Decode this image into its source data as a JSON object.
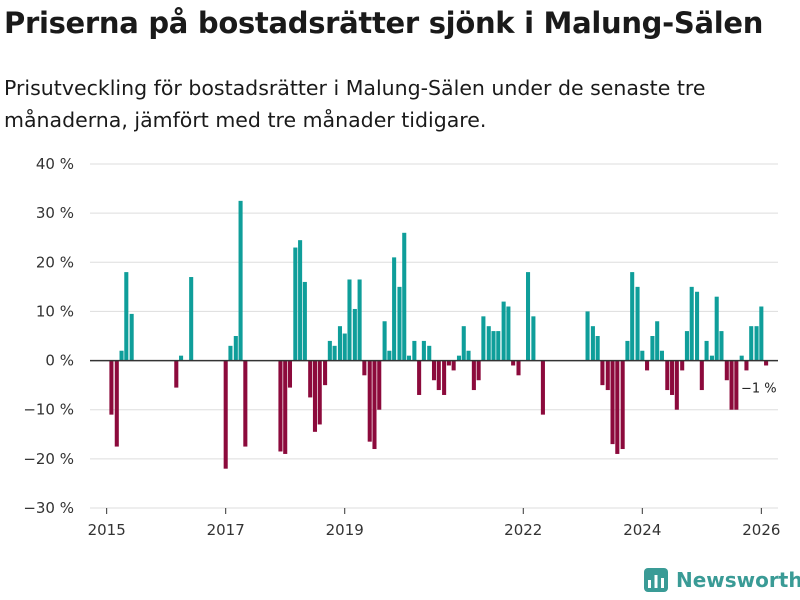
{
  "title": "Priserna på bostadsrätter sjönk i Malung-Sälen",
  "subtitle": "Prisutveckling för bostadsrätter i Malung-Sälen under de senaste tre månaderna, jämfört med tre månader tidigare.",
  "brand": {
    "name": "Newsworthy",
    "icon": "newsworthy-logo-icon"
  },
  "colors": {
    "positive": "#0f9e9a",
    "negative": "#8c0a3c",
    "grid": "#dddddd",
    "axis": "#333333",
    "brand": "#3a9b96"
  },
  "chart_data": {
    "type": "bar",
    "title": "Priserna på bostadsrätter sjönk i Malung-Sälen",
    "ylabel": "",
    "xlabel": "",
    "ylim": [
      -30,
      40
    ],
    "yticks": [
      40,
      30,
      20,
      10,
      0,
      -10,
      -20,
      -30
    ],
    "ytick_labels": [
      "40 %",
      "30 %",
      "20 %",
      "10 %",
      "0 %",
      "−10 %",
      "−20 %",
      "−30 %"
    ],
    "xlim": [
      2014.72,
      2026.28
    ],
    "xticks": [
      2015,
      2017,
      2019,
      2022,
      2024,
      2026
    ],
    "xtick_labels": [
      "2015",
      "2017",
      "2019",
      "2022",
      "2024",
      "2026"
    ],
    "grid": true,
    "annotation": {
      "text": "−1 %",
      "x": 2025.96,
      "y": -1
    },
    "values": [
      [
        2015.08,
        -11
      ],
      [
        2015.17,
        -17.5
      ],
      [
        2015.25,
        2
      ],
      [
        2015.33,
        18
      ],
      [
        2015.42,
        9.5
      ],
      [
        2016.17,
        -5.5
      ],
      [
        2016.25,
        1
      ],
      [
        2016.42,
        17
      ],
      [
        2017.0,
        -22
      ],
      [
        2017.08,
        3
      ],
      [
        2017.17,
        5
      ],
      [
        2017.25,
        32.5
      ],
      [
        2017.33,
        -17.5
      ],
      [
        2017.92,
        -18.5
      ],
      [
        2018.0,
        -19
      ],
      [
        2018.08,
        -5.5
      ],
      [
        2018.17,
        23
      ],
      [
        2018.25,
        24.5
      ],
      [
        2018.33,
        16
      ],
      [
        2018.42,
        -7.5
      ],
      [
        2018.5,
        -14.5
      ],
      [
        2018.58,
        -13
      ],
      [
        2018.67,
        -5
      ],
      [
        2018.75,
        4
      ],
      [
        2018.83,
        3
      ],
      [
        2018.92,
        7
      ],
      [
        2019.0,
        5.5
      ],
      [
        2019.08,
        16.5
      ],
      [
        2019.17,
        10.5
      ],
      [
        2019.25,
        16.5
      ],
      [
        2019.33,
        -3
      ],
      [
        2019.42,
        -16.5
      ],
      [
        2019.5,
        -18
      ],
      [
        2019.58,
        -10
      ],
      [
        2019.67,
        8
      ],
      [
        2019.75,
        2
      ],
      [
        2019.83,
        21
      ],
      [
        2019.92,
        15
      ],
      [
        2020.0,
        26
      ],
      [
        2020.08,
        1
      ],
      [
        2020.17,
        4
      ],
      [
        2020.25,
        -7
      ],
      [
        2020.33,
        4
      ],
      [
        2020.42,
        3
      ],
      [
        2020.5,
        -4
      ],
      [
        2020.58,
        -6
      ],
      [
        2020.67,
        -7
      ],
      [
        2020.75,
        -1
      ],
      [
        2020.83,
        -2
      ],
      [
        2020.92,
        1
      ],
      [
        2021.0,
        7
      ],
      [
        2021.08,
        2
      ],
      [
        2021.17,
        -6
      ],
      [
        2021.25,
        -4
      ],
      [
        2021.33,
        9
      ],
      [
        2021.42,
        7
      ],
      [
        2021.5,
        6
      ],
      [
        2021.58,
        6
      ],
      [
        2021.67,
        12
      ],
      [
        2021.75,
        11
      ],
      [
        2021.83,
        -1
      ],
      [
        2021.92,
        -3
      ],
      [
        2022.08,
        18
      ],
      [
        2022.17,
        9
      ],
      [
        2022.33,
        -11
      ],
      [
        2023.08,
        10
      ],
      [
        2023.17,
        7
      ],
      [
        2023.25,
        5
      ],
      [
        2023.33,
        -5
      ],
      [
        2023.42,
        -6
      ],
      [
        2023.5,
        -17
      ],
      [
        2023.58,
        -19
      ],
      [
        2023.67,
        -18
      ],
      [
        2023.75,
        4
      ],
      [
        2023.83,
        18
      ],
      [
        2023.92,
        15
      ],
      [
        2024.0,
        2
      ],
      [
        2024.08,
        -2
      ],
      [
        2024.17,
        5
      ],
      [
        2024.25,
        8
      ],
      [
        2024.33,
        2
      ],
      [
        2024.42,
        -6
      ],
      [
        2024.5,
        -7
      ],
      [
        2024.58,
        -10
      ],
      [
        2024.67,
        -2
      ],
      [
        2024.75,
        6
      ],
      [
        2024.83,
        15
      ],
      [
        2024.92,
        14
      ],
      [
        2025.0,
        -6
      ],
      [
        2025.08,
        4
      ],
      [
        2025.17,
        1
      ],
      [
        2025.25,
        13
      ],
      [
        2025.33,
        6
      ],
      [
        2025.42,
        -4
      ],
      [
        2025.5,
        -10
      ],
      [
        2025.58,
        -10
      ],
      [
        2025.67,
        1
      ],
      [
        2025.75,
        -2
      ],
      [
        2025.83,
        7
      ],
      [
        2025.92,
        7
      ],
      [
        2026.0,
        11
      ],
      [
        2026.08,
        -1
      ]
    ]
  }
}
